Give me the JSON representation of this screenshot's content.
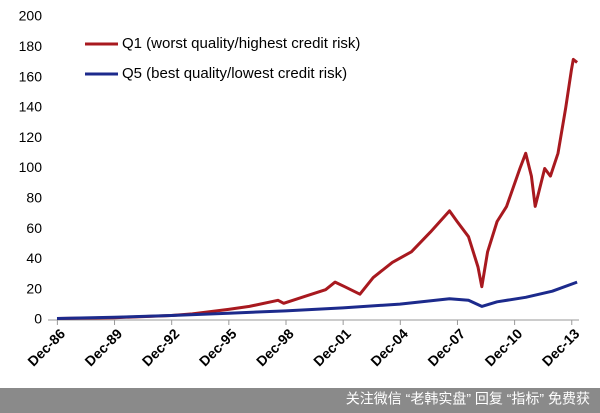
{
  "chart_data": {
    "type": "line",
    "series": [
      {
        "name": "Q1 (worst quality/highest credit risk)",
        "color": "#a8191f",
        "x": [
          1986.9,
          1989.9,
          1992.9,
          1994.0,
          1995.9,
          1997.0,
          1998.5,
          1998.8,
          2000.0,
          2001.0,
          2001.5,
          2002.0,
          2002.8,
          2003.5,
          2004.5,
          2005.5,
          2006.5,
          2007.5,
          2007.9,
          2008.5,
          2009.0,
          2009.2,
          2009.5,
          2010.0,
          2010.5,
          2011.2,
          2011.5,
          2011.8,
          2012.0,
          2012.5,
          2012.8,
          2013.2,
          2013.6,
          2013.9,
          2014.0,
          2014.2
        ],
        "values": [
          1,
          1.5,
          3,
          4,
          7,
          9,
          13,
          11,
          16,
          20,
          25,
          22,
          17,
          28,
          38,
          45,
          58,
          72,
          65,
          55,
          35,
          22,
          45,
          65,
          75,
          100,
          110,
          95,
          75,
          100,
          95,
          110,
          140,
          165,
          172,
          170
        ]
      },
      {
        "name": "Q5 (best quality/lowest credit risk)",
        "color": "#1c2a8c",
        "x": [
          1986.9,
          1989.9,
          1992.9,
          1995.9,
          1998.9,
          2001.9,
          2004.9,
          2007.5,
          2008.5,
          2009.2,
          2010.0,
          2011.5,
          2012.9,
          2014.2
        ],
        "values": [
          1,
          1.8,
          3,
          4.5,
          6,
          8,
          10.5,
          14,
          13,
          9,
          12,
          15,
          19,
          25
        ]
      }
    ],
    "xlim": [
      1986.9,
      2014.3
    ],
    "xticks": [
      {
        "value": 1986.92,
        "label": "Dec-86"
      },
      {
        "value": 1989.92,
        "label": "Dec-89"
      },
      {
        "value": 1992.92,
        "label": "Dec-92"
      },
      {
        "value": 1995.92,
        "label": "Dec-95"
      },
      {
        "value": 1998.92,
        "label": "Dec-98"
      },
      {
        "value": 2001.92,
        "label": "Dec-01"
      },
      {
        "value": 2004.92,
        "label": "Dec-04"
      },
      {
        "value": 2007.92,
        "label": "Dec-07"
      },
      {
        "value": 2010.92,
        "label": "Dec-10"
      },
      {
        "value": 2013.92,
        "label": "Dec-13"
      }
    ],
    "ylim": [
      0,
      200
    ],
    "yticks": [
      0,
      20,
      40,
      60,
      80,
      100,
      120,
      140,
      160,
      180,
      200
    ],
    "watermark": "关注微信 “老韩实盘” 回复 “指标” 免费获"
  }
}
